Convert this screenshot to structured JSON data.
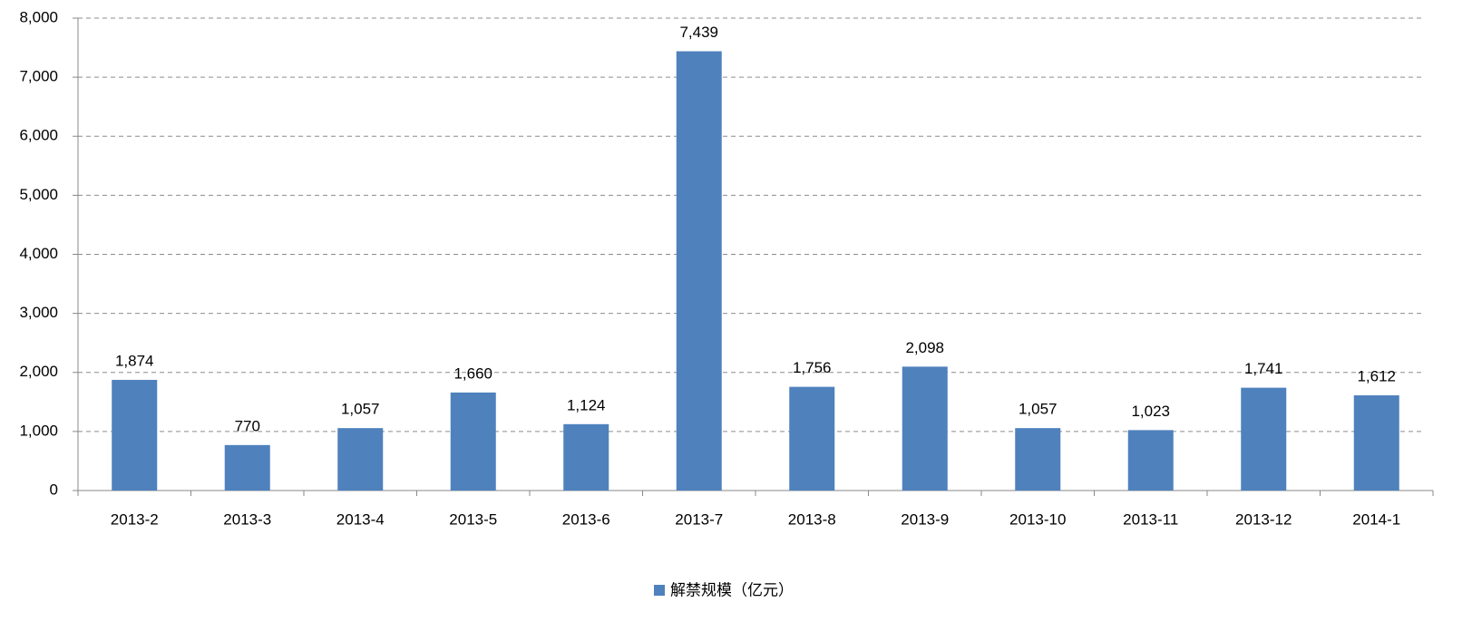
{
  "chart_data": {
    "type": "bar",
    "categories": [
      "2013-2",
      "2013-3",
      "2013-4",
      "2013-5",
      "2013-6",
      "2013-7",
      "2013-8",
      "2013-9",
      "2013-10",
      "2013-11",
      "2013-12",
      "2014-1"
    ],
    "series": [
      {
        "name": "解禁规模（亿元）",
        "color": "#4f81bd",
        "values": [
          1874,
          770,
          1057,
          1660,
          1124,
          7439,
          1756,
          2098,
          1057,
          1023,
          1741,
          1612
        ],
        "value_labels": [
          "1,874",
          "770",
          "1,057",
          "1,660",
          "1,124",
          "7,439",
          "1,756",
          "2,098",
          "1,057",
          "1,023",
          "1,741",
          "1,612"
        ]
      }
    ],
    "ylim": [
      0,
      8000
    ],
    "yticks": [
      0,
      {
        "value": 1000,
        "label": "1,000"
      },
      {
        "value": 2000,
        "label": "2,000"
      },
      {
        "value": 3000,
        "label": "3,000"
      },
      {
        "value": 4000,
        "label": "4,000"
      },
      {
        "value": 5000,
        "label": "5,000"
      },
      {
        "value": 6000,
        "label": "6,000"
      },
      {
        "value": 7000,
        "label": "7,000"
      },
      {
        "value": 8000,
        "label": "8,000"
      }
    ],
    "grid": true,
    "legend": "bottom"
  }
}
